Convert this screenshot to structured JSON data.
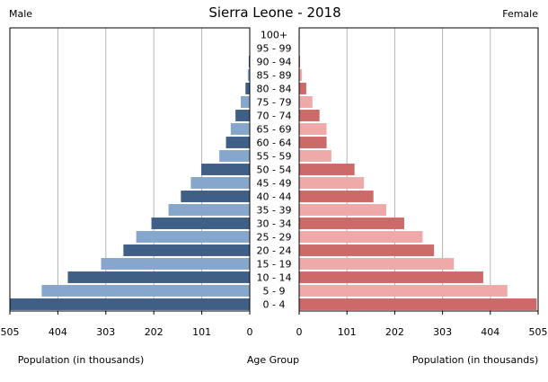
{
  "chart_data": {
    "type": "bar",
    "title": "Sierra Leone - 2018",
    "left_label": "Male",
    "right_label": "Female",
    "xlabel_left": "Population (in thousands)",
    "xlabel_center": "Age Group",
    "xlabel_right": "Population (in thousands)",
    "categories": [
      "0 - 4",
      "5 - 9",
      "10 - 14",
      "15 - 19",
      "20 - 24",
      "25 - 29",
      "30 - 34",
      "35 - 39",
      "40 - 44",
      "45 - 49",
      "50 - 54",
      "55 - 59",
      "60 - 64",
      "65 - 69",
      "70 - 74",
      "75 - 79",
      "80 - 84",
      "85 - 89",
      "90 - 94",
      "95 - 99",
      "100+"
    ],
    "series": [
      {
        "name": "Male",
        "values": [
          505,
          438,
          383,
          313,
          266,
          239,
          207,
          171,
          145,
          124,
          102,
          64,
          50,
          40,
          30,
          19,
          9,
          4,
          2,
          1,
          0.5
        ]
      },
      {
        "name": "Female",
        "values": [
          502,
          440,
          389,
          327,
          285,
          261,
          222,
          184,
          157,
          137,
          117,
          68,
          58,
          58,
          43,
          28,
          15,
          6,
          2,
          1,
          0.5
        ]
      }
    ],
    "xlim": [
      0,
      505
    ],
    "xticks_left": [
      "505",
      "404",
      "303",
      "202",
      "101",
      "0"
    ],
    "xticks_right": [
      "0",
      "101",
      "202",
      "303",
      "404",
      "505"
    ],
    "tick_values": [
      0,
      101,
      202,
      303,
      404,
      505
    ],
    "grid": true,
    "colors": {
      "male_dark": "#3f5f86",
      "male_light": "#87a6cb",
      "female_dark": "#cc6a6a",
      "female_light": "#f0a9a9",
      "grid": "#b3b3b3"
    }
  }
}
